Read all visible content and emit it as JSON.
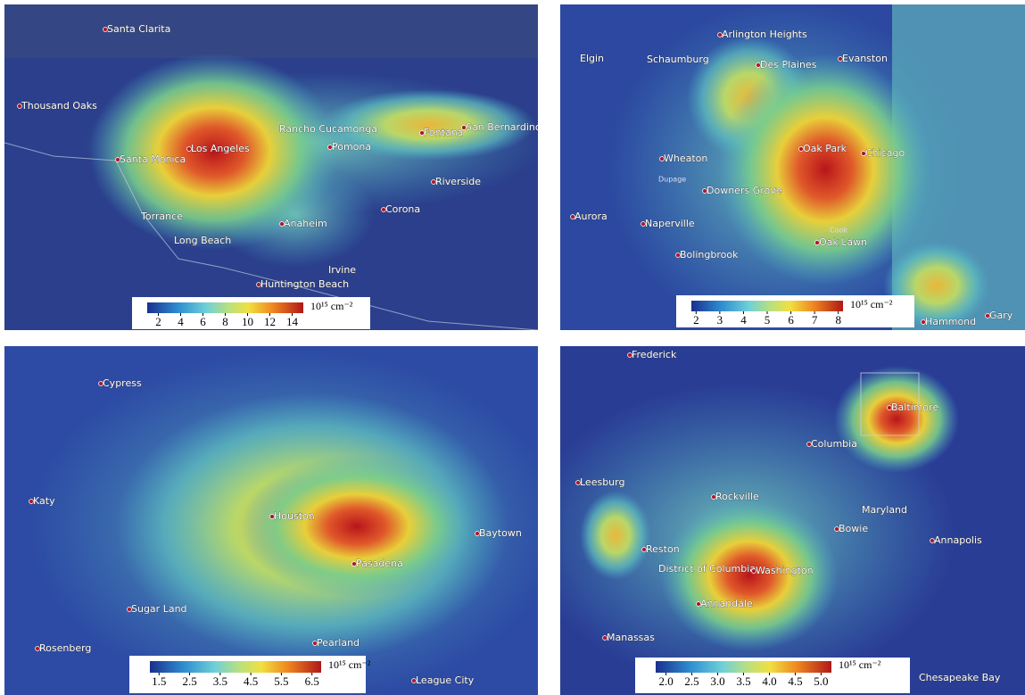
{
  "panels": [
    {
      "cities": [
        "Santa Clarita",
        "Thousand Oaks",
        "Los Angeles",
        "Santa Monica",
        "Rancho Cucamonga",
        "Pomona",
        "Fontana",
        "San Bernardino",
        "Riverside",
        "Corona",
        "Anaheim",
        "Torrance",
        "Long Beach",
        "Irvine",
        "Huntington Beach"
      ],
      "colorbar": {
        "unit": "10¹⁵ cm⁻²",
        "range": [
          1,
          15
        ],
        "ticks": [
          2,
          4,
          6,
          8,
          10,
          12,
          14
        ]
      }
    },
    {
      "cities": [
        "Arlington Heights",
        "Elgin",
        "Schaumburg",
        "Des Plaines",
        "Evanston",
        "Oak Park",
        "Chicago",
        "Wheaton",
        "Dupage",
        "Downers Grove",
        "Aurora",
        "Naperville",
        "Cook",
        "Oak Lawn",
        "Bolingbrook",
        "Hammond",
        "Gary"
      ],
      "colorbar": {
        "unit": "10¹⁵ cm⁻²",
        "range": [
          1.8,
          8.2
        ],
        "ticks": [
          2,
          3,
          4,
          5,
          6,
          7,
          8
        ]
      }
    },
    {
      "cities": [
        "Cypress",
        "Katy",
        "Houston",
        "Baytown",
        "Pasadena",
        "Sugar Land",
        "Rosenberg",
        "Pearland",
        "League City"
      ],
      "colorbar": {
        "unit": "10¹⁵ cm⁻²",
        "range": [
          1.2,
          6.8
        ],
        "ticks": [
          1.5,
          2.5,
          3.5,
          4.5,
          5.5,
          6.5
        ]
      }
    },
    {
      "cities": [
        "Frederick",
        "Baltimore",
        "Columbia",
        "Leesburg",
        "Rockville",
        "Maryland",
        "Bowie",
        "Annapolis",
        "Reston",
        "District of Columbia",
        "Washington",
        "Annandale",
        "Manassas",
        "Chesapeake Bay"
      ],
      "colorbar": {
        "unit": "10¹⁵ cm⁻²",
        "range": [
          1.8,
          5.2
        ],
        "ticks": [
          {
            "value": 2,
            "label": "2.0"
          },
          {
            "value": 2.5,
            "label": "2.5"
          },
          {
            "value": 3,
            "label": "3.0"
          },
          {
            "value": 3.5,
            "label": "3.5"
          },
          {
            "value": 4,
            "label": "4.0"
          },
          {
            "value": 4.5,
            "label": "4.5"
          },
          {
            "value": 5,
            "label": "5.0"
          }
        ]
      }
    }
  ]
}
